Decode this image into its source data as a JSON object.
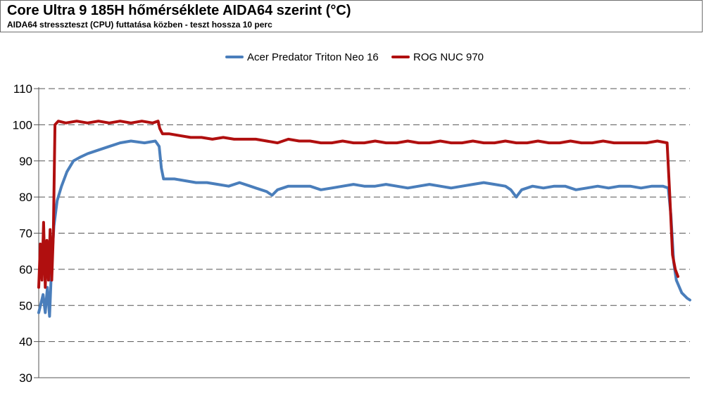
{
  "header": {
    "title": "Core Ultra 9 185H hőmérséklete AIDA64 szerint (°C)",
    "subtitle": "AIDA64 stresszteszt (CPU) futtatása közben - teszt hossza 10 perc"
  },
  "chart_data": {
    "type": "line",
    "title": "Core Ultra 9 185H hőmérséklete AIDA64 szerint (°C)",
    "subtitle": "AIDA64 stresszteszt (CPU) futtatása közben - teszt hossza 10 perc",
    "xlabel": "",
    "ylabel": "",
    "ylim": [
      30,
      110
    ],
    "yticks": [
      30,
      40,
      50,
      60,
      70,
      80,
      90,
      100,
      110
    ],
    "grid": true,
    "legend_position": "top-center",
    "series": [
      {
        "name": "Acer Predator Triton Neo 16",
        "color": "#4a7ebb",
        "points": [
          [
            0.0,
            48
          ],
          [
            0.8,
            53
          ],
          [
            1.2,
            48
          ],
          [
            1.6,
            55
          ],
          [
            2.0,
            47
          ],
          [
            2.4,
            62
          ],
          [
            2.8,
            72
          ],
          [
            3.4,
            79
          ],
          [
            4.2,
            83
          ],
          [
            5.2,
            87
          ],
          [
            6.4,
            90
          ],
          [
            7.6,
            91
          ],
          [
            9.0,
            92
          ],
          [
            11.0,
            93
          ],
          [
            13.0,
            94
          ],
          [
            15.0,
            95
          ],
          [
            17.0,
            95.5
          ],
          [
            19.5,
            95
          ],
          [
            21.5,
            95.5
          ],
          [
            22.2,
            94
          ],
          [
            22.6,
            88
          ],
          [
            23.0,
            85
          ],
          [
            25.0,
            85
          ],
          [
            27.0,
            84.5
          ],
          [
            29.0,
            84
          ],
          [
            31.0,
            84
          ],
          [
            33.0,
            83.5
          ],
          [
            35.0,
            83
          ],
          [
            37.0,
            84
          ],
          [
            39.0,
            83
          ],
          [
            40.0,
            82.5
          ],
          [
            41.0,
            82
          ],
          [
            42.0,
            81.5
          ],
          [
            43.0,
            80.5
          ],
          [
            44.0,
            82
          ],
          [
            46.0,
            83
          ],
          [
            48.0,
            83
          ],
          [
            50.0,
            83
          ],
          [
            52.0,
            82
          ],
          [
            54.0,
            82.5
          ],
          [
            56.0,
            83
          ],
          [
            58.0,
            83.5
          ],
          [
            60.0,
            83
          ],
          [
            62.0,
            83
          ],
          [
            64.0,
            83.5
          ],
          [
            66.0,
            83
          ],
          [
            68.0,
            82.5
          ],
          [
            70.0,
            83
          ],
          [
            72.0,
            83.5
          ],
          [
            74.0,
            83
          ],
          [
            76.0,
            82.5
          ],
          [
            78.0,
            83
          ],
          [
            80.0,
            83.5
          ],
          [
            82.0,
            84
          ],
          [
            84.0,
            83.5
          ],
          [
            86.0,
            83
          ],
          [
            87.0,
            82
          ],
          [
            88.0,
            80
          ],
          [
            89.0,
            82
          ],
          [
            91.0,
            83
          ],
          [
            93.0,
            82.5
          ],
          [
            95.0,
            83
          ],
          [
            97.0,
            83
          ],
          [
            99.0,
            82
          ],
          [
            101.0,
            82.5
          ],
          [
            103.0,
            83
          ],
          [
            105.0,
            82.5
          ],
          [
            107.0,
            83
          ],
          [
            109.0,
            83
          ],
          [
            111.0,
            82.5
          ],
          [
            113.0,
            83
          ],
          [
            115.0,
            83
          ],
          [
            116.0,
            82.5
          ],
          [
            116.5,
            75
          ],
          [
            117.0,
            62
          ],
          [
            117.5,
            57
          ],
          [
            118.5,
            53.5
          ],
          [
            119.5,
            52
          ],
          [
            120.0,
            51.5
          ]
        ]
      },
      {
        "name": "ROG NUC 970",
        "color": "#b00f0f",
        "points": [
          [
            0.0,
            55
          ],
          [
            0.3,
            67
          ],
          [
            0.6,
            57
          ],
          [
            0.9,
            73
          ],
          [
            1.2,
            55
          ],
          [
            1.5,
            68
          ],
          [
            1.8,
            57
          ],
          [
            2.1,
            71
          ],
          [
            2.4,
            57
          ],
          [
            2.7,
            70
          ],
          [
            3.0,
            100
          ],
          [
            3.6,
            101
          ],
          [
            5.0,
            100.5
          ],
          [
            7.0,
            101
          ],
          [
            9.0,
            100.5
          ],
          [
            11.0,
            101
          ],
          [
            13.0,
            100.5
          ],
          [
            15.0,
            101
          ],
          [
            17.0,
            100.5
          ],
          [
            19.0,
            101
          ],
          [
            21.0,
            100.5
          ],
          [
            22.0,
            101
          ],
          [
            22.3,
            99
          ],
          [
            22.8,
            97.5
          ],
          [
            24.0,
            97.5
          ],
          [
            26.0,
            97
          ],
          [
            28.0,
            96.5
          ],
          [
            30.0,
            96.5
          ],
          [
            32.0,
            96
          ],
          [
            34.0,
            96.5
          ],
          [
            36.0,
            96
          ],
          [
            38.0,
            96
          ],
          [
            40.0,
            96
          ],
          [
            42.0,
            95.5
          ],
          [
            44.0,
            95
          ],
          [
            46.0,
            96
          ],
          [
            48.0,
            95.5
          ],
          [
            50.0,
            95.5
          ],
          [
            52.0,
            95
          ],
          [
            54.0,
            95
          ],
          [
            56.0,
            95.5
          ],
          [
            58.0,
            95
          ],
          [
            60.0,
            95
          ],
          [
            62.0,
            95.5
          ],
          [
            64.0,
            95
          ],
          [
            66.0,
            95
          ],
          [
            68.0,
            95.5
          ],
          [
            70.0,
            95
          ],
          [
            72.0,
            95
          ],
          [
            74.0,
            95.5
          ],
          [
            76.0,
            95
          ],
          [
            78.0,
            95
          ],
          [
            80.0,
            95.5
          ],
          [
            82.0,
            95
          ],
          [
            84.0,
            95
          ],
          [
            86.0,
            95.5
          ],
          [
            88.0,
            95
          ],
          [
            90.0,
            95
          ],
          [
            92.0,
            95.5
          ],
          [
            94.0,
            95
          ],
          [
            96.0,
            95
          ],
          [
            98.0,
            95.5
          ],
          [
            100.0,
            95
          ],
          [
            102.0,
            95
          ],
          [
            104.0,
            95.5
          ],
          [
            106.0,
            95
          ],
          [
            108.0,
            95
          ],
          [
            110.0,
            95
          ],
          [
            112.0,
            95
          ],
          [
            114.0,
            95.5
          ],
          [
            115.8,
            95
          ],
          [
            116.3,
            80
          ],
          [
            116.8,
            64
          ],
          [
            117.3,
            60
          ],
          [
            117.8,
            58
          ]
        ]
      }
    ]
  }
}
